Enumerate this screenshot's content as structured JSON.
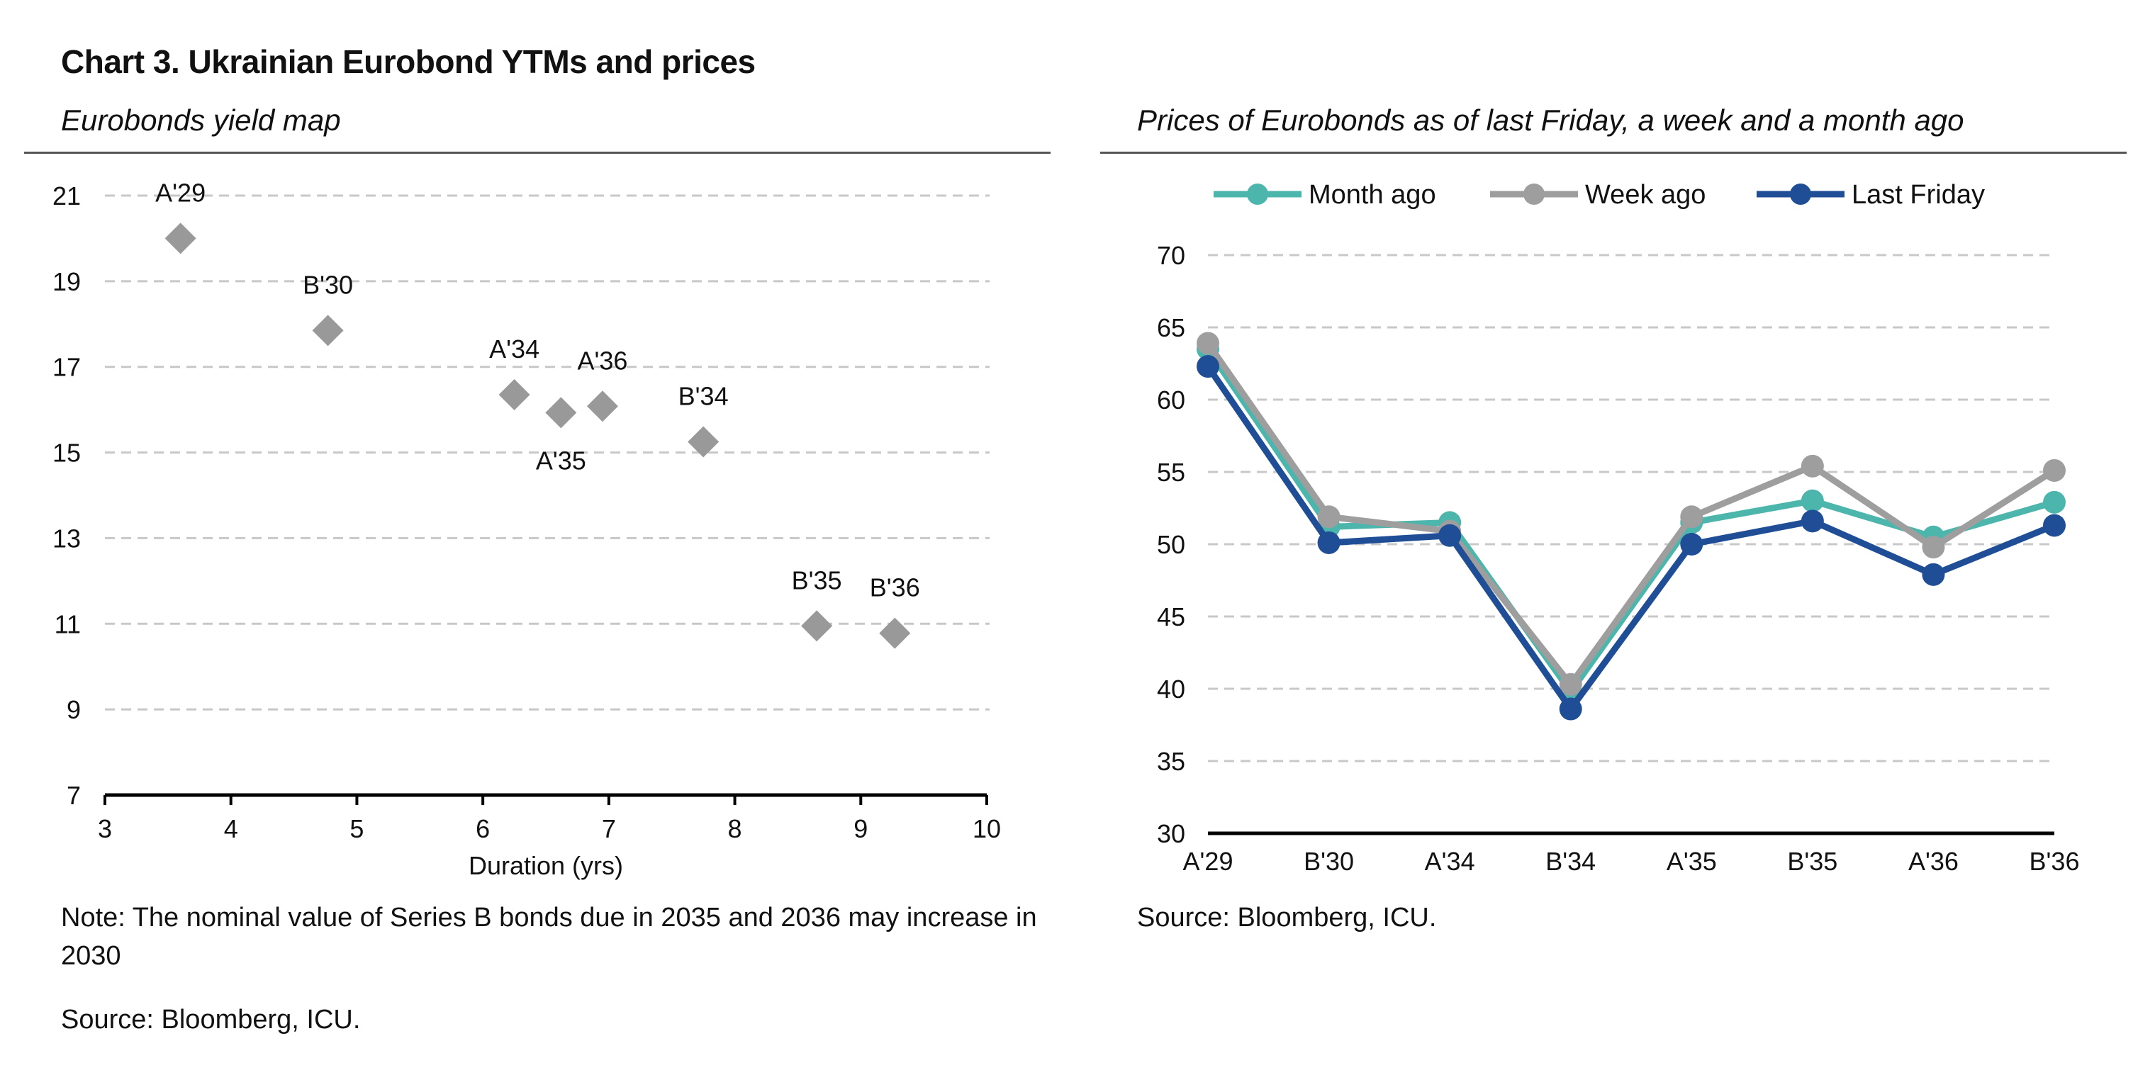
{
  "title": "Chart 3. Ukrainian Eurobond YTMs and prices",
  "left_panel": {
    "subtitle": "Eurobonds yield map",
    "note": "Note: The nominal value of Series B bonds due in 2035 and 2036 may increase in 2030",
    "source": "Source: Bloomberg, ICU."
  },
  "right_panel": {
    "subtitle": "Prices of Eurobonds as of last Friday, a week and a month ago",
    "source": "Source: Bloomberg, ICU."
  },
  "colors": {
    "scatter_marker": "#999999",
    "month_ago": "#4DB6AC",
    "week_ago": "#9E9E9E",
    "last_friday": "#1F4E96",
    "grid": "#c8c8c8"
  },
  "chart_data": [
    {
      "type": "scatter",
      "xlabel": "Duration (yrs)",
      "ylabel": "",
      "xlim": [
        3,
        10
      ],
      "ylim": [
        7,
        21
      ],
      "xticks": [
        "3",
        "4",
        "5",
        "6",
        "7",
        "8",
        "9",
        "10"
      ],
      "yticks": [
        "7",
        "9",
        "11",
        "13",
        "15",
        "17",
        "19",
        "21"
      ],
      "grid": true,
      "points": [
        {
          "label": "A'29",
          "x": 3.6,
          "y": 20.0,
          "label_pos": "above"
        },
        {
          "label": "B'30",
          "x": 4.77,
          "y": 17.85,
          "label_pos": "above"
        },
        {
          "label": "A'34",
          "x": 6.25,
          "y": 16.35,
          "label_pos": "above"
        },
        {
          "label": "A'35",
          "x": 6.62,
          "y": 15.93,
          "label_pos": "below"
        },
        {
          "label": "A'36",
          "x": 6.95,
          "y": 16.08,
          "label_pos": "above"
        },
        {
          "label": "B'34",
          "x": 7.75,
          "y": 15.25,
          "label_pos": "above"
        },
        {
          "label": "B'35",
          "x": 8.65,
          "y": 10.95,
          "label_pos": "above"
        },
        {
          "label": "B'36",
          "x": 9.27,
          "y": 10.78,
          "label_pos": "above"
        }
      ]
    },
    {
      "type": "line",
      "categories": [
        "A'29",
        "B'30",
        "A'34",
        "B'34",
        "A'35",
        "B'35",
        "A'36",
        "B'36"
      ],
      "ylim": [
        30,
        70
      ],
      "yticks": [
        "30",
        "35",
        "40",
        "45",
        "50",
        "55",
        "60",
        "65",
        "70"
      ],
      "grid": true,
      "legend_position": "top",
      "series": [
        {
          "name": "Month ago",
          "color": "#4DB6AC",
          "values": [
            63.5,
            51.2,
            51.5,
            39.8,
            51.5,
            53.0,
            50.5,
            52.9
          ]
        },
        {
          "name": "Week ago",
          "color": "#9E9E9E",
          "values": [
            63.9,
            51.9,
            50.9,
            40.3,
            51.9,
            55.4,
            49.8,
            55.1
          ]
        },
        {
          "name": "Last Friday",
          "color": "#1F4E96",
          "values": [
            62.3,
            50.1,
            50.6,
            38.6,
            50.0,
            51.6,
            47.9,
            51.3
          ]
        }
      ]
    }
  ]
}
